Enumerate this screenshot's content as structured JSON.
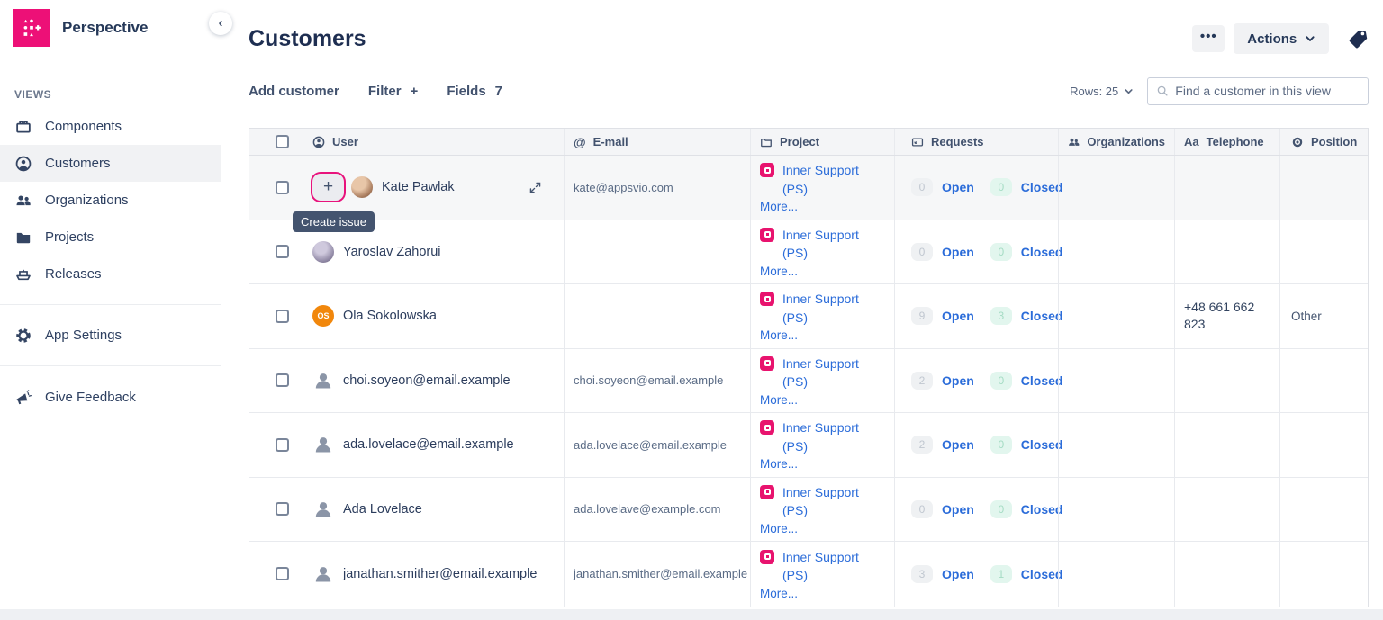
{
  "brand": {
    "name": "Perspective"
  },
  "sidebar": {
    "collapse_icon": "‹",
    "views_label": "VIEWS",
    "items": [
      {
        "label": "Components",
        "icon": "brick-icon",
        "active": false
      },
      {
        "label": "Customers",
        "icon": "person-circle-icon",
        "active": true
      },
      {
        "label": "Organizations",
        "icon": "people-icon",
        "active": false
      },
      {
        "label": "Projects",
        "icon": "folder-icon",
        "active": false
      },
      {
        "label": "Releases",
        "icon": "ship-icon",
        "active": false
      }
    ],
    "settings_label": "App Settings",
    "feedback_label": "Give Feedback"
  },
  "header": {
    "title": "Customers",
    "more_button": "•••",
    "actions_label": "Actions"
  },
  "toolbar": {
    "add_customer_label": "Add customer",
    "filter_label": "Filter",
    "filter_plus": "+",
    "fields_label": "Fields",
    "fields_count": "7",
    "rows_label": "Rows: 25",
    "search_placeholder": "Find a customer in this view"
  },
  "tooltip": {
    "text": "Create issue"
  },
  "table": {
    "columns": [
      {
        "key": "user",
        "label": "User",
        "icon": "person-circle-icon"
      },
      {
        "key": "email",
        "label": "E-mail",
        "icon": "at-icon"
      },
      {
        "key": "project",
        "label": "Project",
        "icon": "folder-outline-icon"
      },
      {
        "key": "requests",
        "label": "Requests",
        "icon": "card-icon"
      },
      {
        "key": "organizations",
        "label": "Organizations",
        "icon": "people-icon"
      },
      {
        "key": "telephone",
        "label": "Telephone",
        "icon": "text-type-icon",
        "icon_text": "Aa"
      },
      {
        "key": "position",
        "label": "Position",
        "icon": "target-icon"
      }
    ],
    "project_link": "Inner Support (PS)",
    "more_link": "More...",
    "open_label": "Open",
    "closed_label": "Closed",
    "rows": [
      {
        "name": "Kate Pawlak",
        "email": "kate@appsvio.com",
        "avatar": {
          "type": "photo",
          "tone": "warm"
        },
        "open": "0",
        "closed": "0",
        "telephone": "",
        "position": "",
        "has_create_button": true
      },
      {
        "name": "Yaroslav Zahorui",
        "email": "",
        "avatar": {
          "type": "photo",
          "tone": "cool"
        },
        "open": "0",
        "closed": "0",
        "telephone": "",
        "position": ""
      },
      {
        "name": "Ola Sokolowska",
        "email": "",
        "avatar": {
          "type": "initials",
          "initials": "OS",
          "color": "#f1870c"
        },
        "open": "9",
        "closed": "3",
        "telephone": "+48 661 662 823",
        "position": "Other"
      },
      {
        "name": "choi.soyeon@email.example",
        "email": "choi.soyeon@email.example",
        "avatar": {
          "type": "generic"
        },
        "open": "2",
        "closed": "0",
        "telephone": "",
        "position": ""
      },
      {
        "name": "ada.lovelace@email.example",
        "email": "ada.lovelace@email.example",
        "avatar": {
          "type": "generic"
        },
        "open": "2",
        "closed": "0",
        "telephone": "",
        "position": ""
      },
      {
        "name": "Ada Lovelace",
        "email": "ada.lovelave@example.com",
        "avatar": {
          "type": "generic"
        },
        "open": "0",
        "closed": "0",
        "telephone": "",
        "position": ""
      },
      {
        "name": "janathan.smither@email.example",
        "email": "janathan.smither@email.example",
        "avatar": {
          "type": "generic"
        },
        "open": "3",
        "closed": "1",
        "telephone": "",
        "position": ""
      }
    ]
  },
  "colors": {
    "brand_pink": "#ed1077",
    "project_pink": "#e8136e",
    "link_blue": "#2b6cd9",
    "navy_text": "#253858",
    "open_badge_bg": "#eff1f3",
    "closed_badge_bg": "#e2f6ee",
    "tooltip_bg": "#44546f",
    "highlight_ring": "#e8137c"
  }
}
